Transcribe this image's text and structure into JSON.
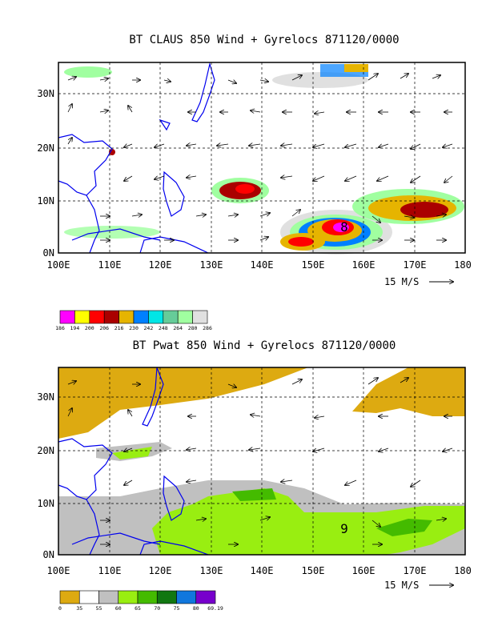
{
  "maps": [
    {
      "id": "claus",
      "title": "BT CLAUS 850 Wind + Gyrelocs 871120/0000",
      "storm_label": "8",
      "vector_scale_label": "15 M/S",
      "colorbar_labels": [
        "186",
        "194",
        "200",
        "206",
        "216",
        "230",
        "242",
        "248",
        "264",
        "280",
        "286"
      ],
      "colorbar_colors": [
        "#ff00ff",
        "#ffff00",
        "#ff0000",
        "#aa0000",
        "#e6b400",
        "#0080ff",
        "#00e6e6",
        "#66cc99",
        "#a0ffa0",
        "#e0e0e0"
      ]
    },
    {
      "id": "pwat",
      "title": "BT Pwat 850 Wind + Gyrelocs 871120/0000",
      "storm_label": "9",
      "vector_scale_label": "15 M/S",
      "colorbar_labels": [
        "0",
        "35",
        "55",
        "60",
        "65",
        "70",
        "75",
        "80",
        "69.19"
      ],
      "colorbar_colors": [
        "#ddaa11",
        "#ffffff",
        "#c0c0c0",
        "#99ee11",
        "#44bb00",
        "#117711",
        "#1177dd",
        "#7700cc"
      ]
    }
  ],
  "axes": {
    "lon_labels": [
      "100E",
      "110E",
      "120E",
      "130E",
      "140E",
      "150E",
      "160E",
      "170E",
      "180"
    ],
    "lat_labels": [
      "30N",
      "20N",
      "10N",
      "0N"
    ],
    "lon_range": [
      100,
      180
    ],
    "lat_range": [
      0,
      36
    ]
  }
}
